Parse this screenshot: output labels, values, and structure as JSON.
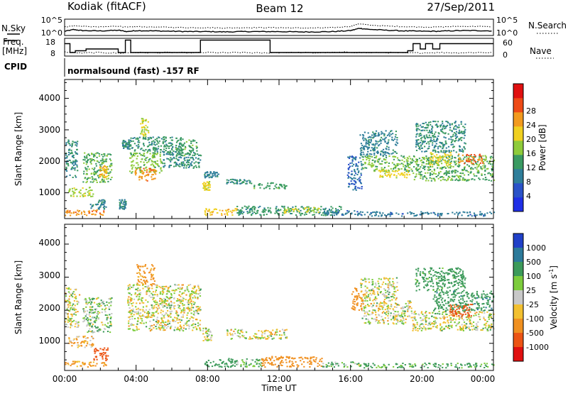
{
  "header": {
    "station": "Kodiak (fitACF)",
    "beam": "Beam 12",
    "date": "27/Sep/2011"
  },
  "params": {
    "nsky_label": "N.Sky",
    "nsearch_label": "N.Search",
    "freq_label_1": "Freq.",
    "freq_label_2": "[MHz]",
    "nave_label": "Nave",
    "cpid_label": "CPID",
    "noise_ticks": [
      "10^5",
      "10^0"
    ],
    "freq_ticks": [
      "18",
      "8"
    ],
    "nave_ticks": [
      "60",
      "0"
    ],
    "cpid_text": "normalsound (fast) -157 RF"
  },
  "xaxis": {
    "label": "Time UT",
    "ticks": [
      "00:00",
      "04:00",
      "08:00",
      "12:00",
      "16:00",
      "20:00",
      "00:00"
    ]
  },
  "power_panel": {
    "ylabel": "Slant Range [km]",
    "yticks": [
      "1000",
      "2000",
      "3000",
      "4000"
    ],
    "cbar_label": "Power [dB]",
    "cbar_ticks": [
      "4",
      "8",
      "12",
      "16",
      "20",
      "24",
      "28"
    ],
    "cbar_colors": [
      "#1f2fe6",
      "#2a52c8",
      "#2f7e9a",
      "#3a9a62",
      "#8ecb3a",
      "#f0d020",
      "#f29a1e",
      "#ee4a16",
      "#e01010"
    ]
  },
  "velocity_panel": {
    "ylabel": "Slant Range [km]",
    "yticks": [
      "1000",
      "2000",
      "3000",
      "4000"
    ],
    "cbar_label": "Velocity [m s",
    "cbar_sup": "-1",
    "cbar_label_end": "]",
    "cbar_ticks": [
      "1000",
      "500",
      "100",
      "25",
      "-25",
      "-100",
      "-500",
      "-1000"
    ],
    "cbar_colors": [
      "#2040c8",
      "#2c7a9a",
      "#3c9a5a",
      "#7ccc3c",
      "#c8c8c8",
      "#f2c030",
      "#f09020",
      "#ec5414",
      "#e01010"
    ]
  },
  "chart_data": [
    {
      "type": "line",
      "title": "N.Sky / N.Search",
      "xlim": [
        0,
        24
      ],
      "ylim_log10": [
        0,
        5
      ],
      "series": [
        {
          "name": "N.Sky",
          "x": [
            0,
            0.5,
            1,
            2,
            3,
            3.5,
            4,
            5,
            6,
            7,
            8,
            9,
            10,
            11,
            12,
            13,
            14,
            15,
            16,
            16.5,
            17,
            18,
            19,
            20,
            21,
            22,
            23,
            24
          ],
          "y": [
            1.3,
            1.8,
            1.5,
            1.4,
            1.6,
            1.2,
            1.5,
            1.4,
            1.3,
            1.2,
            1.2,
            1.1,
            1.2,
            1.2,
            1.2,
            1.1,
            1.1,
            1.2,
            1.5,
            2.2,
            1.9,
            1.6,
            1.4,
            1.3,
            1.3,
            1.5,
            1.5,
            1.4
          ]
        },
        {
          "name": "N.Search",
          "x": [
            0,
            0.5,
            1,
            2,
            3,
            3.5,
            4,
            5,
            6,
            7,
            8,
            9,
            10,
            11,
            12,
            13,
            14,
            15,
            16,
            16.5,
            17,
            18,
            19,
            20,
            21,
            22,
            23,
            24
          ],
          "y": [
            2.6,
            3.0,
            2.8,
            2.6,
            2.9,
            2.5,
            2.7,
            2.6,
            2.5,
            2.4,
            2.4,
            2.3,
            2.4,
            2.4,
            2.4,
            2.3,
            2.3,
            2.4,
            2.8,
            3.6,
            3.2,
            2.9,
            2.7,
            2.6,
            2.6,
            2.8,
            2.8,
            2.7
          ]
        }
      ]
    },
    {
      "type": "line",
      "title": "Freq. / Nave",
      "xlim": [
        0,
        24
      ],
      "series": [
        {
          "name": "Freq. [MHz]",
          "unit": "MHz",
          "ylim": [
            8,
            18
          ],
          "x": [
            0,
            0.3,
            0.6,
            1.2,
            2.5,
            3,
            3.4,
            3.7,
            7.6,
            11,
            11.5,
            16,
            19.2,
            19.5,
            19.9,
            20.2,
            20.6,
            21,
            21.3,
            24
          ],
          "y": [
            15,
            10,
            11,
            12,
            12,
            10,
            17,
            10,
            17,
            17,
            10,
            10,
            11,
            15,
            12,
            15,
            12,
            15,
            15,
            15
          ]
        },
        {
          "name": "Nave",
          "ylim": [
            0,
            60
          ],
          "x": [
            0,
            1,
            2,
            3,
            4,
            5,
            6,
            7,
            8,
            9,
            10,
            11,
            12,
            13,
            14,
            15,
            16,
            17,
            18,
            19,
            20,
            21,
            22,
            23,
            24
          ],
          "y": [
            14,
            10,
            12,
            10,
            12,
            11,
            12,
            11,
            12,
            11,
            12,
            10,
            12,
            12,
            11,
            12,
            13,
            11,
            12,
            10,
            11,
            12,
            11,
            12,
            12
          ]
        }
      ]
    },
    {
      "type": "heatmap",
      "title": "Power [dB]",
      "xlabel": "Time UT",
      "ylabel": "Slant Range [km]",
      "xlim": [
        0,
        24
      ],
      "ylim": [
        180,
        4600
      ],
      "clim": [
        0,
        30
      ],
      "regions": [
        {
          "t0": 0.0,
          "t1": 2.3,
          "r0": 300,
          "r1": 480,
          "value": 22
        },
        {
          "t0": 0.0,
          "t1": 0.7,
          "r0": 1500,
          "r1": 2700,
          "value": 10
        },
        {
          "t0": 0.2,
          "t1": 1.6,
          "r0": 900,
          "r1": 1200,
          "value": 16
        },
        {
          "t0": 1.0,
          "t1": 2.6,
          "r0": 1350,
          "r1": 2300,
          "value": 13
        },
        {
          "t0": 1.4,
          "t1": 2.3,
          "r0": 500,
          "r1": 800,
          "value": 9
        },
        {
          "t0": 1.9,
          "t1": 2.4,
          "r0": 1500,
          "r1": 1900,
          "value": 20
        },
        {
          "t0": 3.6,
          "t1": 5.4,
          "r0": 1650,
          "r1": 2300,
          "value": 14
        },
        {
          "t0": 3.8,
          "t1": 5.1,
          "r0": 1400,
          "r1": 1800,
          "value": 22
        },
        {
          "t0": 3.6,
          "t1": 6.6,
          "r0": 2300,
          "r1": 2800,
          "value": 11
        },
        {
          "t0": 4.2,
          "t1": 4.7,
          "r0": 2800,
          "r1": 3400,
          "value": 16
        },
        {
          "t0": 3.2,
          "t1": 3.6,
          "r0": 2400,
          "r1": 2700,
          "value": 10
        },
        {
          "t0": 3.0,
          "t1": 3.4,
          "r0": 500,
          "r1": 800,
          "value": 9
        },
        {
          "t0": 5.4,
          "t1": 7.6,
          "r0": 1800,
          "r1": 2300,
          "value": 10
        },
        {
          "t0": 6.2,
          "t1": 7.4,
          "r0": 2200,
          "r1": 2700,
          "value": 12
        },
        {
          "t0": 7.7,
          "t1": 8.1,
          "r0": 1100,
          "r1": 1400,
          "value": 18
        },
        {
          "t0": 7.8,
          "t1": 9.6,
          "r0": 300,
          "r1": 520,
          "value": 19
        },
        {
          "t0": 7.8,
          "t1": 8.6,
          "r0": 1500,
          "r1": 1700,
          "value": 9
        },
        {
          "t0": 9.0,
          "t1": 10.4,
          "r0": 1300,
          "r1": 1450,
          "value": 10
        },
        {
          "t0": 10.4,
          "t1": 12.4,
          "r0": 1150,
          "r1": 1350,
          "value": 12
        },
        {
          "t0": 9.6,
          "t1": 15.5,
          "r0": 300,
          "r1": 600,
          "value": 11
        },
        {
          "t0": 12.2,
          "t1": 14.2,
          "r0": 380,
          "r1": 560,
          "value": 17
        },
        {
          "t0": 14.5,
          "t1": 16.5,
          "r0": 300,
          "r1": 450,
          "value": 8
        },
        {
          "t0": 15.8,
          "t1": 16.6,
          "r0": 1100,
          "r1": 2200,
          "value": 7
        },
        {
          "t0": 16.6,
          "t1": 19.4,
          "r0": 1700,
          "r1": 2200,
          "value": 14
        },
        {
          "t0": 17.5,
          "t1": 19.3,
          "r0": 1500,
          "r1": 1750,
          "value": 18
        },
        {
          "t0": 16.5,
          "t1": 18.6,
          "r0": 2200,
          "r1": 3000,
          "value": 9
        },
        {
          "t0": 19.4,
          "t1": 24.0,
          "r0": 1400,
          "r1": 2200,
          "value": 13
        },
        {
          "t0": 20.4,
          "t1": 21.6,
          "r0": 1900,
          "r1": 2300,
          "value": 18
        },
        {
          "t0": 22.0,
          "t1": 23.4,
          "r0": 1950,
          "r1": 2250,
          "value": 24
        },
        {
          "t0": 19.6,
          "t1": 22.4,
          "r0": 2300,
          "r1": 3300,
          "value": 10
        },
        {
          "t0": 16.5,
          "t1": 24.0,
          "r0": 280,
          "r1": 420,
          "value": 8
        }
      ]
    },
    {
      "type": "heatmap",
      "title": "Velocity [m s-1]",
      "xlabel": "Time UT",
      "ylabel": "Slant Range [km]",
      "xlim": [
        0,
        24
      ],
      "ylim": [
        180,
        4600
      ],
      "clim": [
        -1000,
        1000
      ],
      "regions": [
        {
          "t0": 0.0,
          "t1": 2.3,
          "r0": 300,
          "r1": 480,
          "value": -150
        },
        {
          "t0": 0.0,
          "t1": 0.8,
          "r0": 1500,
          "r1": 2700,
          "value": 0
        },
        {
          "t0": 0.2,
          "t1": 1.6,
          "r0": 900,
          "r1": 1250,
          "value": -120
        },
        {
          "t0": 1.0,
          "t1": 2.6,
          "r0": 1350,
          "r1": 2400,
          "value": 60
        },
        {
          "t0": 1.6,
          "t1": 2.4,
          "r0": 500,
          "r1": 900,
          "value": -700
        },
        {
          "t0": 3.5,
          "t1": 7.6,
          "r0": 1400,
          "r1": 2800,
          "value": 0
        },
        {
          "t0": 4.0,
          "t1": 5.0,
          "r0": 2800,
          "r1": 3400,
          "value": -200
        },
        {
          "t0": 7.7,
          "t1": 8.2,
          "r0": 1100,
          "r1": 1500,
          "value": 0
        },
        {
          "t0": 7.8,
          "t1": 9.6,
          "r0": 300,
          "r1": 560,
          "value": 300
        },
        {
          "t0": 9.0,
          "t1": 12.4,
          "r0": 1150,
          "r1": 1450,
          "value": 0
        },
        {
          "t0": 9.6,
          "t1": 11.0,
          "r0": 300,
          "r1": 560,
          "value": 120
        },
        {
          "t0": 11.0,
          "t1": 14.4,
          "r0": 300,
          "r1": 620,
          "value": -250
        },
        {
          "t0": 14.4,
          "t1": 16.5,
          "r0": 300,
          "r1": 460,
          "value": 80
        },
        {
          "t0": 16.0,
          "t1": 16.7,
          "r0": 2000,
          "r1": 2700,
          "value": -300
        },
        {
          "t0": 16.6,
          "t1": 19.4,
          "r0": 1600,
          "r1": 2300,
          "value": 0
        },
        {
          "t0": 16.5,
          "t1": 18.6,
          "r0": 2300,
          "r1": 3000,
          "value": 0
        },
        {
          "t0": 19.4,
          "t1": 24.0,
          "r0": 1400,
          "r1": 2000,
          "value": 0
        },
        {
          "t0": 20.6,
          "t1": 24.0,
          "r0": 2000,
          "r1": 2600,
          "value": 400
        },
        {
          "t0": 21.5,
          "t1": 22.8,
          "r0": 1800,
          "r1": 2200,
          "value": -600
        },
        {
          "t0": 19.6,
          "t1": 22.4,
          "r0": 2600,
          "r1": 3300,
          "value": 200
        },
        {
          "t0": 16.5,
          "t1": 24.0,
          "r0": 280,
          "r1": 420,
          "value": 150
        }
      ]
    }
  ]
}
